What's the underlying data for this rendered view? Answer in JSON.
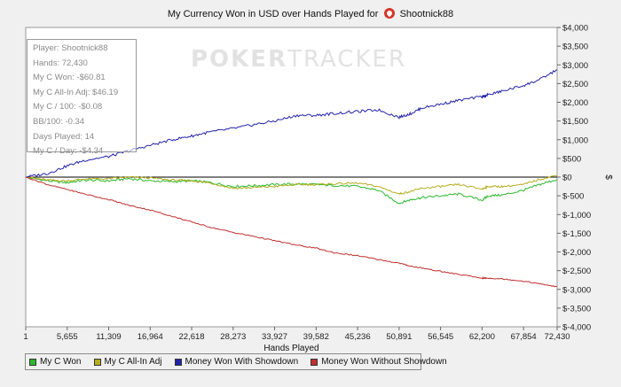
{
  "chart_title_prefix": "My Currency Won in USD over Hands Played for",
  "player_name": "Shootnick88",
  "watermark": {
    "part1": "POKER",
    "part2": "TRACKER"
  },
  "stats": [
    "Player: Shootnick88",
    "Hands: 72,430",
    "My C Won: -$60.81",
    "My C All-In Adj: $46.19",
    "My C / 100: -$0.08",
    "BB/100: -0.34",
    "Days Played: 14",
    "My C / Day: -$4.34"
  ],
  "colors": {
    "green": "#2db82d",
    "olive": "#b3ad1f",
    "blue": "#2323a8",
    "red": "#c03030",
    "zero": "#000000"
  },
  "chart_data": {
    "type": "line",
    "title": "My Currency Won in USD over Hands Played for Shootnick88",
    "xlabel": "Hands Played",
    "ylabel": "$",
    "x_ticks": [
      "1",
      "5,655",
      "11,309",
      "16,964",
      "22,618",
      "28,273",
      "33,927",
      "39,582",
      "45,236",
      "50,891",
      "56,545",
      "62,200",
      "67,854",
      "72,430"
    ],
    "y_ticks": [
      "$4,000",
      "$3,500",
      "$3,000",
      "$2,500",
      "$2,000",
      "$1,500",
      "$1,000",
      "$500",
      "$0",
      "$-500",
      "$-1,000",
      "$-1,500",
      "$-2,000",
      "$-2,500",
      "$-3,000",
      "$-3,500",
      "$-4,000"
    ],
    "xlim": [
      1,
      72430
    ],
    "ylim": [
      -4000,
      4000
    ],
    "legend_position": "bottom-left",
    "series": [
      {
        "name": "My C Won",
        "color": "#2db82d",
        "x": [
          1,
          3000,
          5655,
          8000,
          11309,
          14000,
          16964,
          20000,
          22618,
          25000,
          28273,
          31000,
          33927,
          37000,
          39582,
          42000,
          45236,
          48000,
          50891,
          52500,
          54000,
          56545,
          59000,
          62200,
          63000,
          65000,
          67854,
          70000,
          72430
        ],
        "y": [
          0,
          -100,
          -150,
          -80,
          -100,
          -40,
          -100,
          -120,
          -100,
          -140,
          -250,
          -230,
          -200,
          -180,
          -200,
          -220,
          -250,
          -350,
          -700,
          -600,
          -550,
          -500,
          -450,
          -620,
          -500,
          -480,
          -350,
          -200,
          -61
        ]
      },
      {
        "name": "My C All-In Adj",
        "color": "#b3ad1f",
        "x": [
          1,
          3000,
          5655,
          8000,
          11309,
          14000,
          16964,
          20000,
          22618,
          25000,
          28273,
          31000,
          33927,
          37000,
          39582,
          42000,
          45236,
          48000,
          50891,
          52500,
          54000,
          56545,
          59000,
          62200,
          63000,
          65000,
          67854,
          70000,
          72430
        ],
        "y": [
          0,
          -80,
          -100,
          -50,
          -40,
          0,
          -20,
          -80,
          -100,
          -150,
          -300,
          -280,
          -250,
          -200,
          -200,
          -180,
          -160,
          -250,
          -450,
          -380,
          -300,
          -250,
          -200,
          -320,
          -250,
          -250,
          -200,
          -60,
          46
        ]
      },
      {
        "name": "Money Won With Showdown",
        "color": "#2323a8",
        "x": [
          1,
          3000,
          5655,
          8000,
          11309,
          14000,
          16964,
          20000,
          22618,
          25000,
          28273,
          31000,
          33927,
          37000,
          39582,
          42000,
          45236,
          48000,
          50891,
          52500,
          54000,
          56545,
          59000,
          62200,
          63000,
          65000,
          67854,
          70000,
          72430
        ],
        "y": [
          0,
          100,
          300,
          450,
          550,
          700,
          850,
          1000,
          1100,
          1200,
          1300,
          1400,
          1500,
          1650,
          1650,
          1700,
          1750,
          1800,
          1600,
          1700,
          1850,
          1950,
          2050,
          2150,
          2200,
          2300,
          2450,
          2600,
          2870
        ]
      },
      {
        "name": "Money Won Without Showdown",
        "color": "#c03030",
        "x": [
          1,
          3000,
          5655,
          8000,
          11309,
          14000,
          16964,
          20000,
          22618,
          25000,
          28273,
          31000,
          33927,
          37000,
          39582,
          42000,
          45236,
          48000,
          50891,
          52500,
          54000,
          56545,
          59000,
          62200,
          63000,
          65000,
          67854,
          70000,
          72430
        ],
        "y": [
          0,
          -200,
          -330,
          -450,
          -600,
          -750,
          -880,
          -1050,
          -1200,
          -1330,
          -1480,
          -1580,
          -1700,
          -1820,
          -1900,
          -2020,
          -2100,
          -2200,
          -2300,
          -2380,
          -2430,
          -2520,
          -2600,
          -2700,
          -2700,
          -2720,
          -2780,
          -2850,
          -2930
        ]
      }
    ]
  }
}
